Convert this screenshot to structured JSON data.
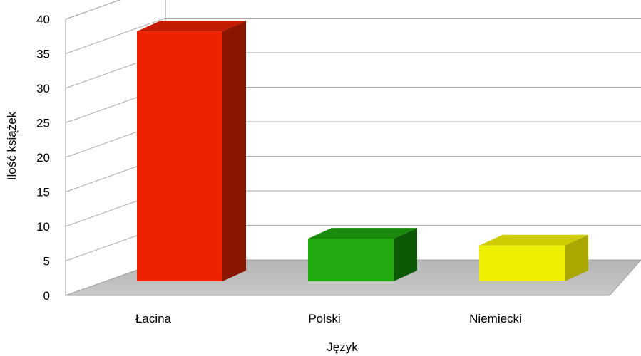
{
  "chart_data": {
    "type": "bar",
    "categories": [
      "Łacina",
      "Polski",
      "Niemiecki"
    ],
    "values": [
      37,
      7,
      6
    ],
    "title": "",
    "xlabel": "Język",
    "ylabel": "Ilość książek",
    "ylim": [
      0,
      40
    ],
    "yticks": [
      0,
      5,
      10,
      15,
      20,
      25,
      30,
      35,
      40
    ],
    "grid": true,
    "legend": "none",
    "colors": [
      "#ee2200",
      "#22aa11",
      "#eeee00"
    ],
    "side_colors": [
      "#8a1500",
      "#0d5a06",
      "#a8a800"
    ],
    "top_colors": [
      "#c41c00",
      "#1a8a0d",
      "#cccc00"
    ]
  }
}
